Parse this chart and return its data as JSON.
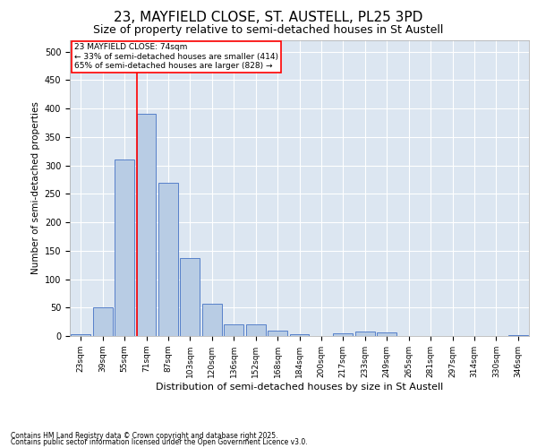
{
  "title1": "23, MAYFIELD CLOSE, ST. AUSTELL, PL25 3PD",
  "title2": "Size of property relative to semi-detached houses in St Austell",
  "xlabel": "Distribution of semi-detached houses by size in St Austell",
  "ylabel": "Number of semi-detached properties",
  "categories": [
    "23sqm",
    "39sqm",
    "55sqm",
    "71sqm",
    "87sqm",
    "103sqm",
    "120sqm",
    "136sqm",
    "152sqm",
    "168sqm",
    "184sqm",
    "200sqm",
    "217sqm",
    "233sqm",
    "249sqm",
    "265sqm",
    "281sqm",
    "297sqm",
    "314sqm",
    "330sqm",
    "346sqm"
  ],
  "values": [
    3,
    50,
    310,
    390,
    270,
    137,
    57,
    20,
    20,
    9,
    3,
    0,
    5,
    8,
    6,
    0,
    0,
    0,
    0,
    0,
    2
  ],
  "bar_color": "#b8cce4",
  "bar_edge_color": "#4472c4",
  "vline_x": 2.55,
  "vline_color": "red",
  "annotation_title": "23 MAYFIELD CLOSE: 74sqm",
  "annotation_line1": "← 33% of semi-detached houses are smaller (414)",
  "annotation_line2": "65% of semi-detached houses are larger (828) →",
  "ylim": [
    0,
    520
  ],
  "yticks": [
    0,
    50,
    100,
    150,
    200,
    250,
    300,
    350,
    400,
    450,
    500
  ],
  "footer1": "Contains HM Land Registry data © Crown copyright and database right 2025.",
  "footer2": "Contains public sector information licensed under the Open Government Licence v3.0.",
  "plot_bg_color": "#dce6f1",
  "title1_fontsize": 11,
  "title2_fontsize": 9,
  "grid_color": "#ffffff"
}
